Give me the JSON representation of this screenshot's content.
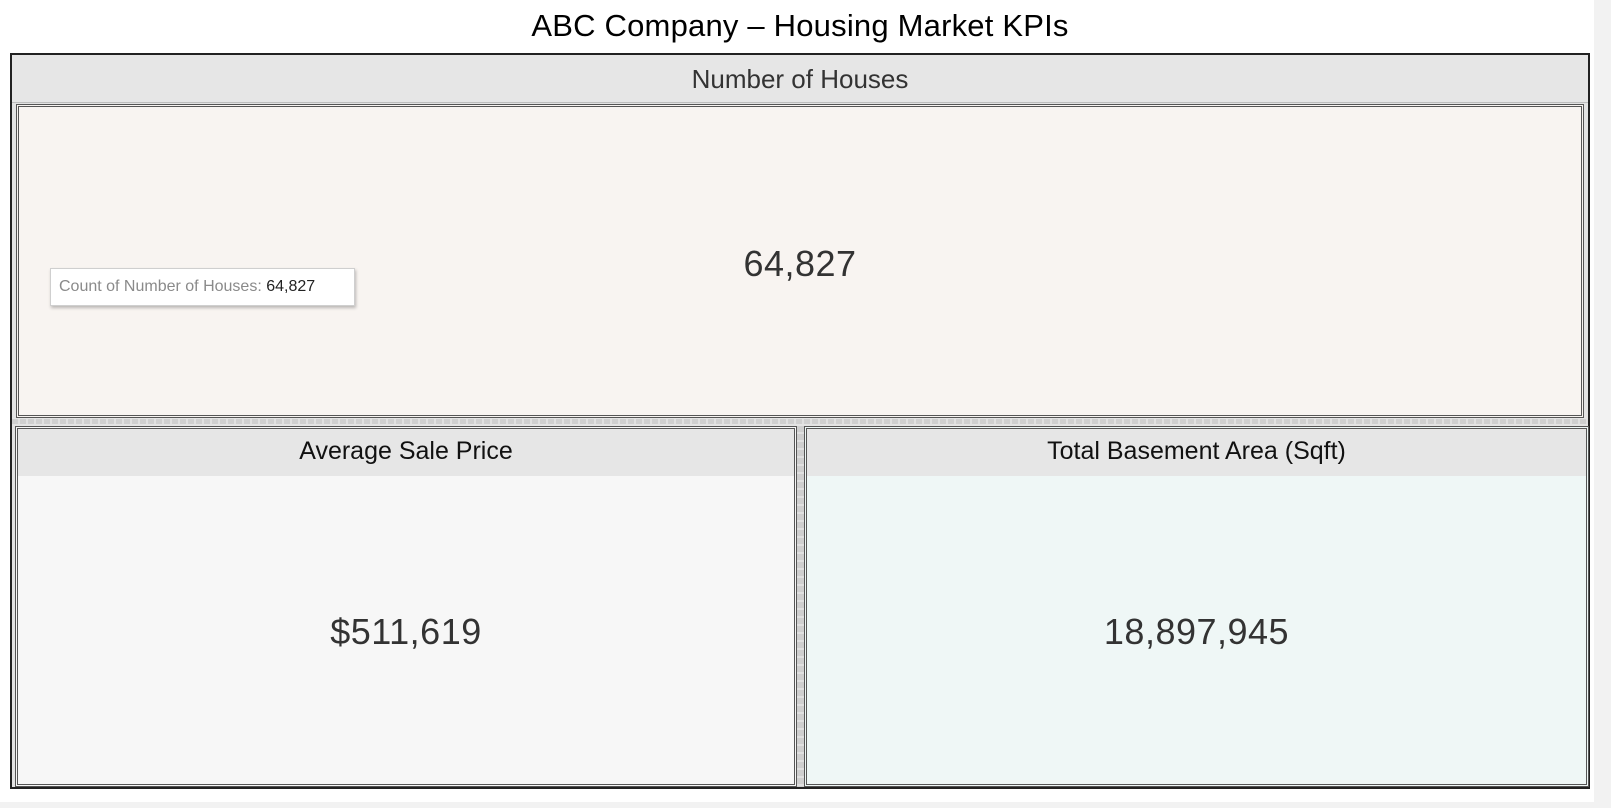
{
  "dashboard": {
    "title": "ABC Company – Housing Market KPIs"
  },
  "kpis": {
    "houses": {
      "header": "Number of Houses",
      "value": "64,827",
      "tooltip_label": "Count of Number of Houses:",
      "tooltip_value": "64,827"
    },
    "avg_price": {
      "header": "Average Sale Price",
      "value": "$511,619"
    },
    "basement": {
      "header": "Total Basement Area (Sqft)",
      "value": "18,897,945"
    }
  },
  "colors": {
    "houses_bg": "#f8f4f1",
    "avg_price_bg": "#f7f7f7",
    "basement_bg": "#eff7f6",
    "header_bg": "#e6e6e6"
  }
}
